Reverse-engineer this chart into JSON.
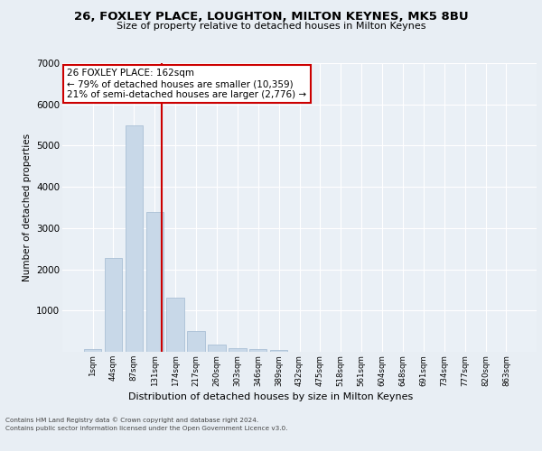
{
  "title1": "26, FOXLEY PLACE, LOUGHTON, MILTON KEYNES, MK5 8BU",
  "title2": "Size of property relative to detached houses in Milton Keynes",
  "xlabel": "Distribution of detached houses by size in Milton Keynes",
  "ylabel": "Number of detached properties",
  "categories": [
    "1sqm",
    "44sqm",
    "87sqm",
    "131sqm",
    "174sqm",
    "217sqm",
    "260sqm",
    "303sqm",
    "346sqm",
    "389sqm",
    "432sqm",
    "475sqm",
    "518sqm",
    "561sqm",
    "604sqm",
    "648sqm",
    "691sqm",
    "734sqm",
    "777sqm",
    "820sqm",
    "863sqm"
  ],
  "values": [
    70,
    2280,
    5480,
    3380,
    1310,
    510,
    170,
    85,
    60,
    50,
    0,
    0,
    0,
    0,
    0,
    0,
    0,
    0,
    0,
    0,
    0
  ],
  "bar_color": "#c8d8e8",
  "bar_edge_color": "#a0b8d0",
  "vline_color": "#cc0000",
  "annotation_text": "26 FOXLEY PLACE: 162sqm\n← 79% of detached houses are smaller (10,359)\n21% of semi-detached houses are larger (2,776) →",
  "annotation_box_color": "#ffffff",
  "annotation_box_edge": "#cc0000",
  "ylim": [
    0,
    7000
  ],
  "yticks": [
    0,
    1000,
    2000,
    3000,
    4000,
    5000,
    6000,
    7000
  ],
  "bg_color": "#e8eef4",
  "plot_bg_color": "#eaf0f6",
  "grid_color": "#ffffff",
  "footer1": "Contains HM Land Registry data © Crown copyright and database right 2024.",
  "footer2": "Contains public sector information licensed under the Open Government Licence v3.0."
}
